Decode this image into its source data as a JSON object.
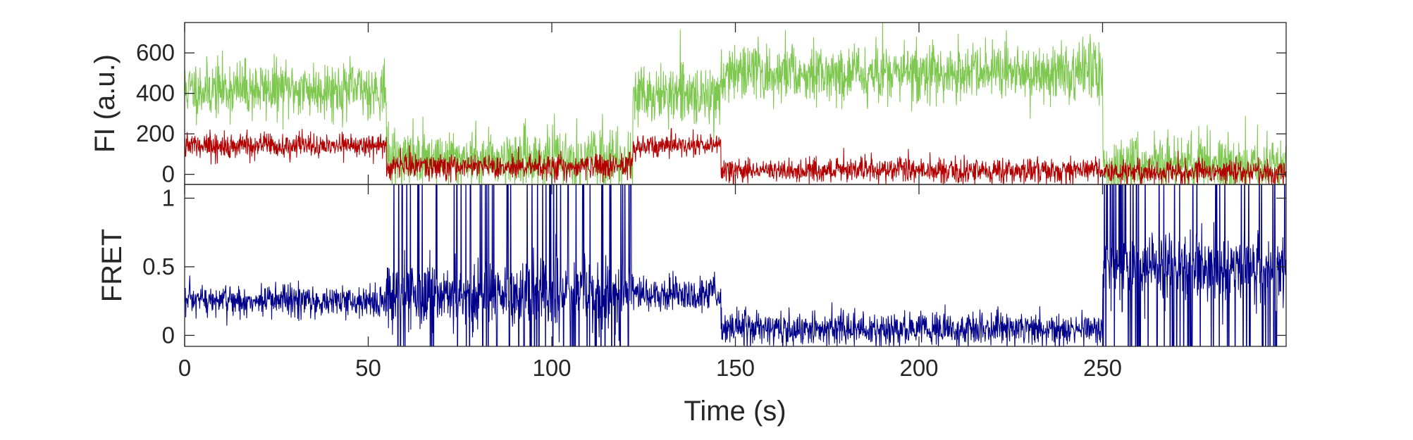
{
  "chart_data": [
    {
      "type": "line",
      "ylabel": "FI (a.u.)",
      "xlim": [
        0,
        300
      ],
      "ylim": [
        -50,
        750
      ],
      "yticks": [
        0,
        200,
        400,
        600
      ],
      "grid": false,
      "legend": "none",
      "series": [
        {
          "color": "#7ec850",
          "noise": 70,
          "segments": [
            {
              "start": 0,
              "end": 55,
              "level": 420
            },
            {
              "start": 55,
              "end": 122,
              "level": 80
            },
            {
              "start": 122,
              "end": 146,
              "level": 390
            },
            {
              "start": 146,
              "end": 250,
              "level": 500
            },
            {
              "start": 250,
              "end": 300,
              "level": 50
            }
          ]
        },
        {
          "color": "#b40000",
          "noise": 30,
          "segments": [
            {
              "start": 0,
              "end": 55,
              "level": 140
            },
            {
              "start": 55,
              "end": 122,
              "level": 40
            },
            {
              "start": 122,
              "end": 146,
              "level": 140
            },
            {
              "start": 146,
              "end": 250,
              "level": 20
            },
            {
              "start": 250,
              "end": 300,
              "level": 10
            }
          ]
        }
      ]
    },
    {
      "type": "line",
      "ylabel": "FRET",
      "xlabel": "Time (s)",
      "xlim": [
        0,
        300
      ],
      "ylim": [
        -0.08,
        1.1
      ],
      "xticks": [
        0,
        50,
        100,
        150,
        200,
        250
      ],
      "yticks": [
        0,
        0.5,
        1
      ],
      "grid": false,
      "legend": "none",
      "series": [
        {
          "color": "#00008b",
          "noise": 0.06,
          "segments": [
            {
              "start": 0,
              "end": 55,
              "level": 0.25
            },
            {
              "start": 55,
              "end": 122,
              "level": 0.3,
              "noisy": true
            },
            {
              "start": 122,
              "end": 146,
              "level": 0.3
            },
            {
              "start": 146,
              "end": 250,
              "level": 0.05
            },
            {
              "start": 250,
              "end": 300,
              "level": 0.5,
              "noisy": true
            }
          ]
        }
      ]
    }
  ]
}
